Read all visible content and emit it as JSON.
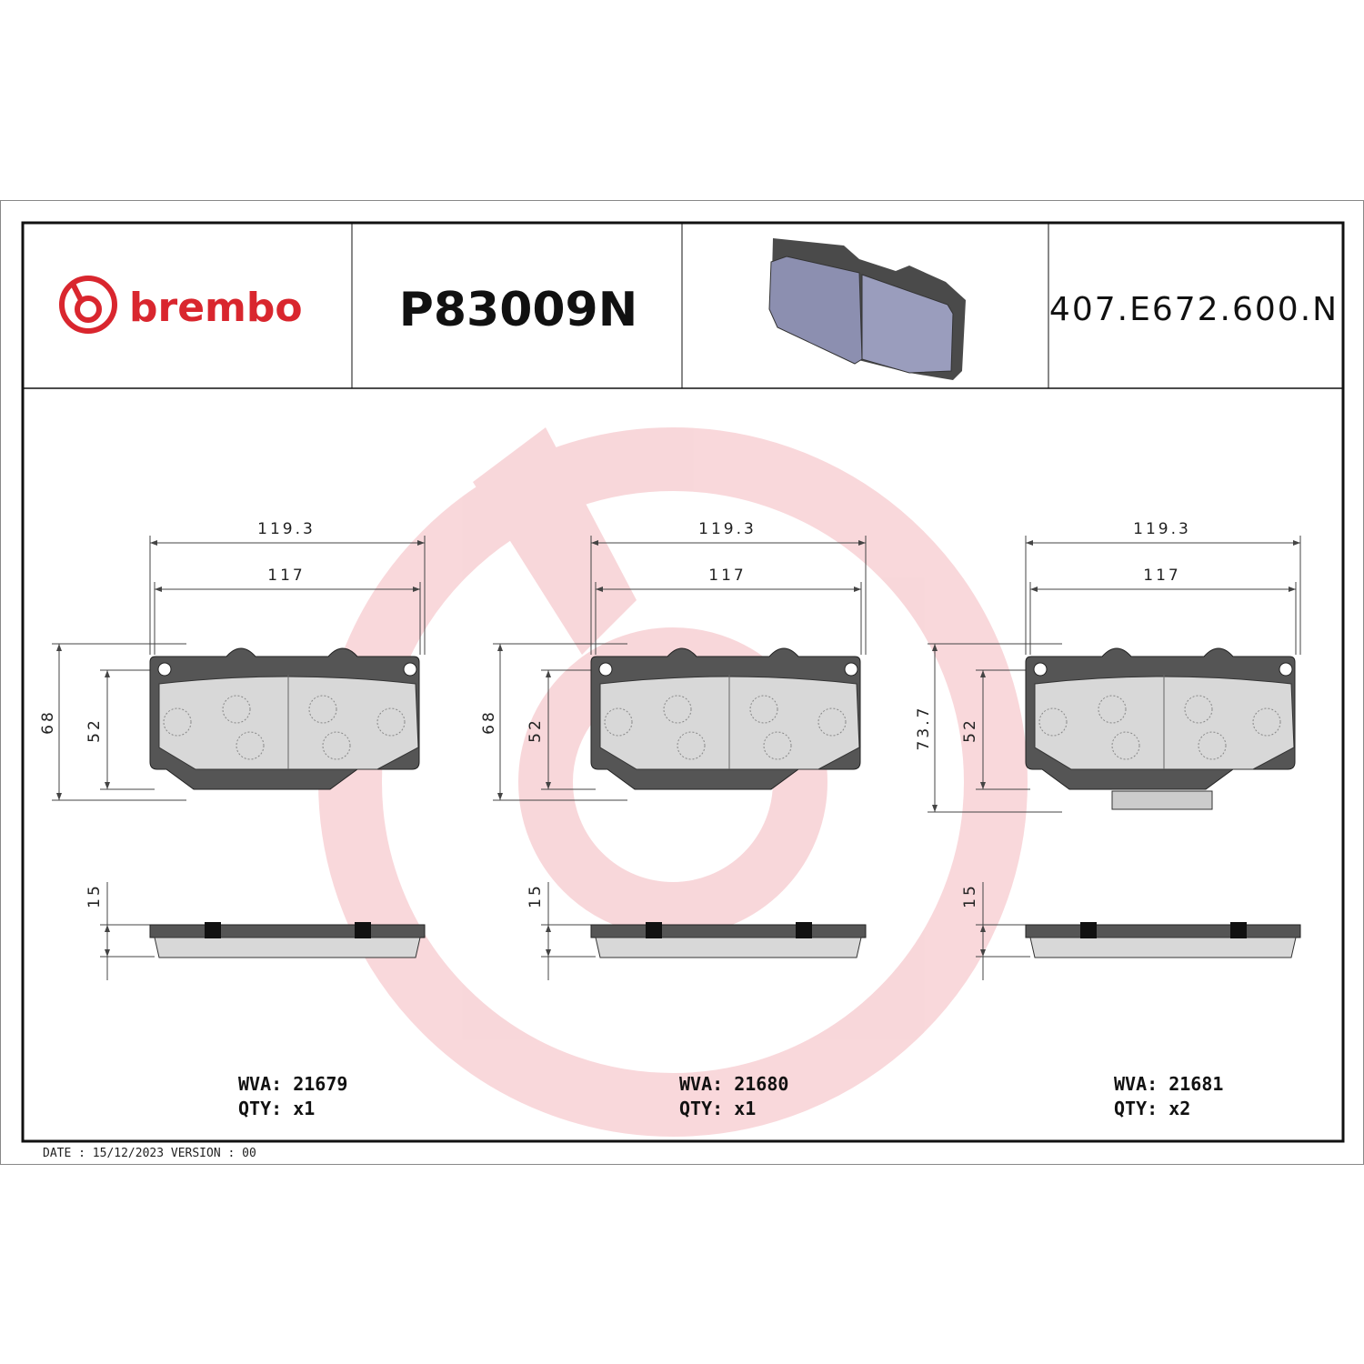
{
  "header": {
    "brand": "brembo",
    "part_number": "P83009N",
    "reference": "407.E672.600.N"
  },
  "pads": [
    {
      "width_total": "119.3",
      "width": "117",
      "height_total": "68",
      "height": "52",
      "thickness": "15",
      "wva": "WVA: 21679",
      "qty": "QTY: x1"
    },
    {
      "width_total": "119.3",
      "width": "117",
      "height_total": "68",
      "height": "52",
      "thickness": "15",
      "wva": "WVA: 21680",
      "qty": "QTY: x1"
    },
    {
      "width_total": "119.3",
      "width": "117",
      "height_total": "73.7",
      "height": "52",
      "thickness": "15",
      "wva": "WVA: 21681",
      "qty": "QTY: x2"
    }
  ],
  "footer": {
    "date_version": "DATE : 15/12/2023 VERSION : 00"
  }
}
